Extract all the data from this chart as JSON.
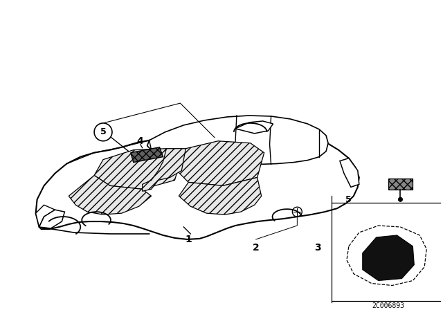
{
  "background_color": "#ffffff",
  "part_number": "2C006893",
  "dpi": 100,
  "figsize": [
    6.4,
    4.48
  ]
}
